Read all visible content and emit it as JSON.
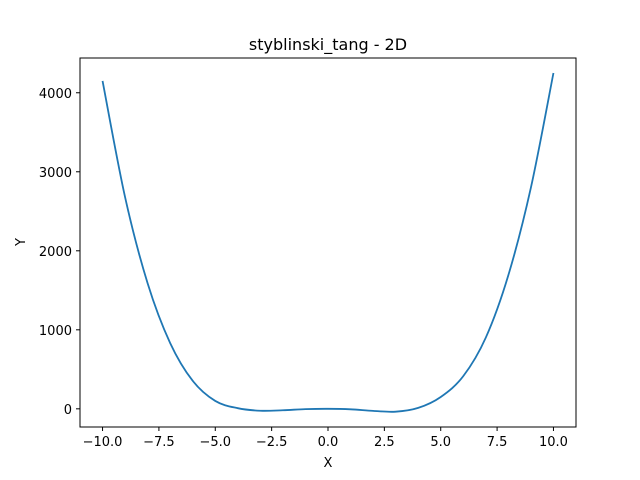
{
  "chart_data": {
    "type": "line",
    "title": "styblinski_tang - 2D",
    "xlabel": "X",
    "ylabel": "Y",
    "xlim": [
      -11.0,
      11.0
    ],
    "ylim": [
      -230,
      4440
    ],
    "grid": false,
    "legend": "none",
    "line_color": "#1f77b4",
    "xticks": [
      -10.0,
      -7.5,
      -5.0,
      -2.5,
      0.0,
      2.5,
      5.0,
      7.5,
      10.0
    ],
    "xtick_labels": [
      "−10.0",
      "−7.5",
      "−5.0",
      "−2.5",
      "0.0",
      "2.5",
      "5.0",
      "7.5",
      "10.0"
    ],
    "yticks": [
      0,
      1000,
      2000,
      3000,
      4000
    ],
    "ytick_labels": [
      "0",
      "1000",
      "2000",
      "3000",
      "4000"
    ],
    "series": [
      {
        "x": [
          -10,
          -9,
          -8,
          -7,
          -6,
          -5,
          -4,
          -3,
          -2,
          -1,
          0,
          1,
          2,
          3,
          4,
          5,
          6,
          7,
          8,
          9,
          10
        ],
        "y": [
          4150,
          2678,
          1588,
          832,
          354,
          100,
          8,
          -24,
          -18,
          -4,
          0,
          -6,
          -26,
          -36,
          12,
          150,
          414,
          902,
          1692,
          2800,
          4250
        ]
      }
    ]
  }
}
